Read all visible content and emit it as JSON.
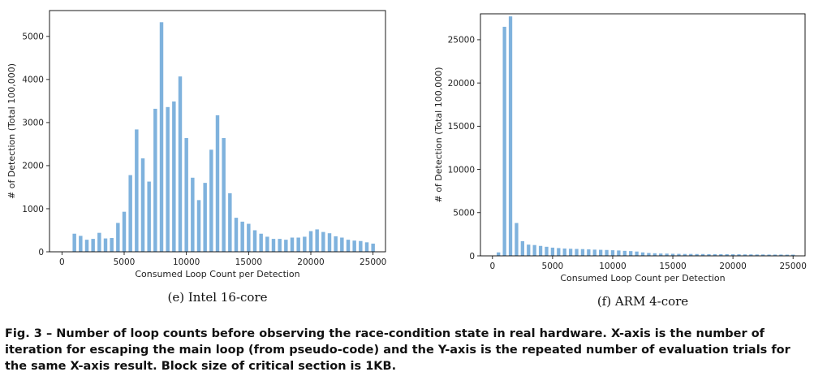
{
  "chart_data": [
    {
      "type": "bar",
      "subcaption": "(e) Intel 16-core",
      "xlabel": "Consumed Loop Count per Detection",
      "ylabel": "# of Detection (Total 100,000)",
      "xlim": [
        -1000,
        26000
      ],
      "ylim": [
        0,
        5600
      ],
      "xticks": [
        0,
        5000,
        10000,
        15000,
        20000,
        25000
      ],
      "yticks": [
        0,
        1000,
        2000,
        3000,
        4000,
        5000
      ],
      "bar_color": "#7fb2dd",
      "x": [
        1000,
        1500,
        2000,
        2500,
        3000,
        3500,
        4000,
        4500,
        5000,
        5500,
        6000,
        6500,
        7000,
        7500,
        8000,
        8500,
        9000,
        9500,
        10000,
        10500,
        11000,
        11500,
        12000,
        12500,
        13000,
        13500,
        14000,
        14500,
        15000,
        15500,
        16000,
        16500,
        17000,
        17500,
        18000,
        18500,
        19000,
        19500,
        20000,
        20500,
        21000,
        21500,
        22000,
        22500,
        23000,
        23500,
        24000,
        24500,
        25000
      ],
      "values": [
        420,
        370,
        280,
        300,
        440,
        310,
        320,
        670,
        930,
        1780,
        2840,
        2170,
        1630,
        3320,
        5330,
        3360,
        3490,
        4070,
        2640,
        1720,
        1200,
        1600,
        2370,
        3170,
        2640,
        1360,
        790,
        700,
        650,
        500,
        420,
        350,
        300,
        300,
        280,
        330,
        330,
        350,
        480,
        520,
        460,
        430,
        360,
        330,
        280,
        260,
        250,
        220,
        190
      ]
    },
    {
      "type": "bar",
      "subcaption": "(f) ARM 4-core",
      "xlabel": "Consumed Loop Count per Detection",
      "ylabel": "# of Detection (Total 100,000)",
      "xlim": [
        -1000,
        26000
      ],
      "ylim": [
        0,
        28000
      ],
      "xticks": [
        0,
        5000,
        10000,
        15000,
        20000,
        25000
      ],
      "yticks": [
        0,
        5000,
        10000,
        15000,
        20000,
        25000
      ],
      "bar_color": "#7fb2dd",
      "x": [
        500,
        1000,
        1500,
        2000,
        2500,
        3000,
        3500,
        4000,
        4500,
        5000,
        5500,
        6000,
        6500,
        7000,
        7500,
        8000,
        8500,
        9000,
        9500,
        10000,
        10500,
        11000,
        11500,
        12000,
        12500,
        13000,
        13500,
        14000,
        14500,
        15000,
        15500,
        16000,
        16500,
        17000,
        17500,
        18000,
        18500,
        19000,
        19500,
        20000,
        20500,
        21000,
        21500,
        22000,
        22500,
        23000,
        23500,
        24000,
        24500,
        25000
      ],
      "values": [
        400,
        26500,
        27700,
        3800,
        1700,
        1300,
        1250,
        1150,
        1050,
        950,
        900,
        850,
        820,
        800,
        780,
        750,
        720,
        700,
        680,
        650,
        620,
        580,
        550,
        500,
        400,
        330,
        300,
        270,
        260,
        240,
        230,
        220,
        220,
        210,
        210,
        200,
        200,
        190,
        190,
        180,
        180,
        170,
        170,
        160,
        160,
        150,
        150,
        150,
        140,
        140
      ]
    }
  ],
  "caption": "Fig. 3 – Number of loop counts before observing the race-condition state in real hardware. X-axis is the number of iteration for escaping the main loop (from pseudo-code) and the Y-axis is the repeated number of evaluation trials for the same X-axis result. Block size of critical section is 1KB."
}
